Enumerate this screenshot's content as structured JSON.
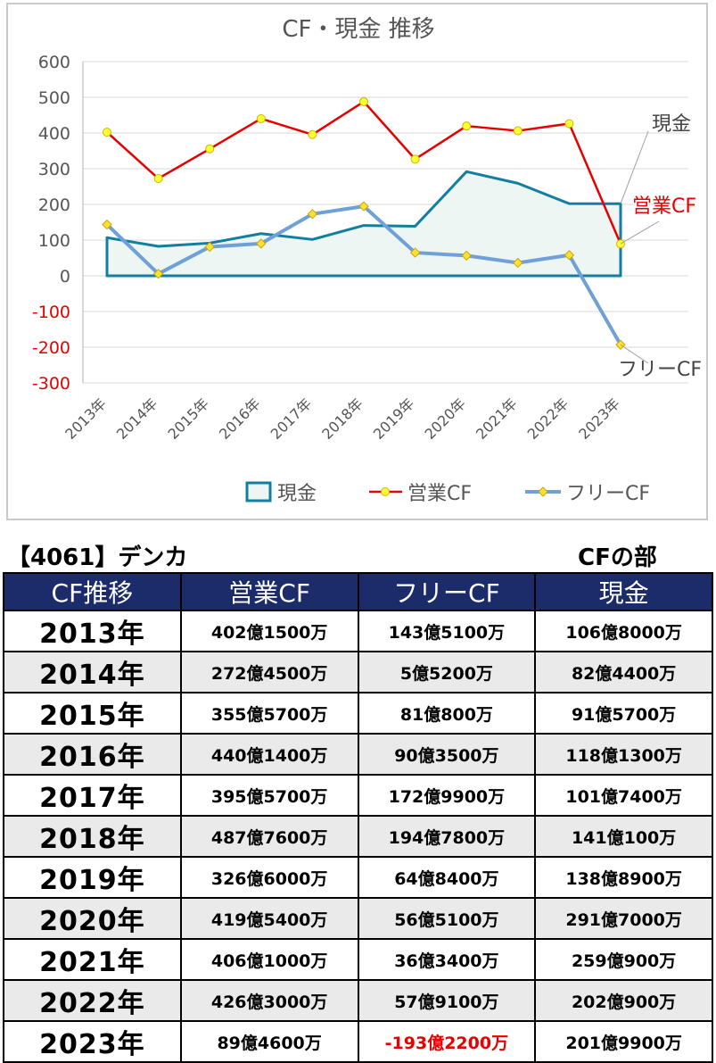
{
  "chart_data": {
    "type": "line",
    "title": "CF・現金 推移",
    "categories": [
      "2013年",
      "2014年",
      "2015年",
      "2016年",
      "2017年",
      "2018年",
      "2019年",
      "2020年",
      "2021年",
      "2022年",
      "2023年"
    ],
    "ylim": [
      -300,
      600
    ],
    "yticks": [
      "600",
      "500",
      "400",
      "300",
      "200",
      "100",
      "0",
      "-100",
      "-200",
      "-300"
    ],
    "series": [
      {
        "name": "現金",
        "chart": "area",
        "color": "#137fa0",
        "values": [
          106.8,
          82.44,
          91.57,
          118.13,
          101.74,
          141.01,
          138.89,
          291.7,
          259.09,
          202.09,
          201.99
        ]
      },
      {
        "name": "営業CF",
        "chart": "line",
        "color": "#e60000",
        "values": [
          402.15,
          272.45,
          355.57,
          440.14,
          395.57,
          487.76,
          326.6,
          419.54,
          406.1,
          426.3,
          89.46
        ]
      },
      {
        "name": "フリーCF",
        "chart": "line",
        "color": "#6fa0d8",
        "values": [
          143.51,
          5.52,
          81.08,
          90.35,
          172.99,
          194.78,
          64.84,
          56.51,
          36.34,
          57.91,
          -193.22
        ]
      }
    ],
    "end_labels": {
      "cash": "現金",
      "operating": "営業CF",
      "free": "フリーCF"
    },
    "legend": [
      "現金",
      "営業CF",
      "フリーCF"
    ],
    "legend_position": "bottom",
    "grid": true
  },
  "header": {
    "company": "【4061】デンカ",
    "section": "CFの部"
  },
  "table": {
    "columns": [
      "CF推移",
      "営業CF",
      "フリーCF",
      "現金"
    ],
    "rows": [
      {
        "year": "2013年",
        "operating": "402億1500万",
        "free": "143億5100万",
        "cash": "106億8000万"
      },
      {
        "year": "2014年",
        "operating": "272億4500万",
        "free": "5億5200万",
        "cash": "82億4400万"
      },
      {
        "year": "2015年",
        "operating": "355億5700万",
        "free": "81億800万",
        "cash": "91億5700万"
      },
      {
        "year": "2016年",
        "operating": "440億1400万",
        "free": "90億3500万",
        "cash": "118億1300万"
      },
      {
        "year": "2017年",
        "operating": "395億5700万",
        "free": "172億9900万",
        "cash": "101億7400万"
      },
      {
        "year": "2018年",
        "operating": "487億7600万",
        "free": "194億7800万",
        "cash": "141億100万"
      },
      {
        "year": "2019年",
        "operating": "326億6000万",
        "free": "64億8400万",
        "cash": "138億8900万"
      },
      {
        "year": "2020年",
        "operating": "419億5400万",
        "free": "56億5100万",
        "cash": "291億7000万"
      },
      {
        "year": "2021年",
        "operating": "406億1000万",
        "free": "36億3400万",
        "cash": "259億900万"
      },
      {
        "year": "2022年",
        "operating": "426億3000万",
        "free": "57億9100万",
        "cash": "202億900万"
      },
      {
        "year": "2023年",
        "operating": "89億4600万",
        "free": "-193億2200万",
        "cash": "201億9900万"
      }
    ]
  }
}
